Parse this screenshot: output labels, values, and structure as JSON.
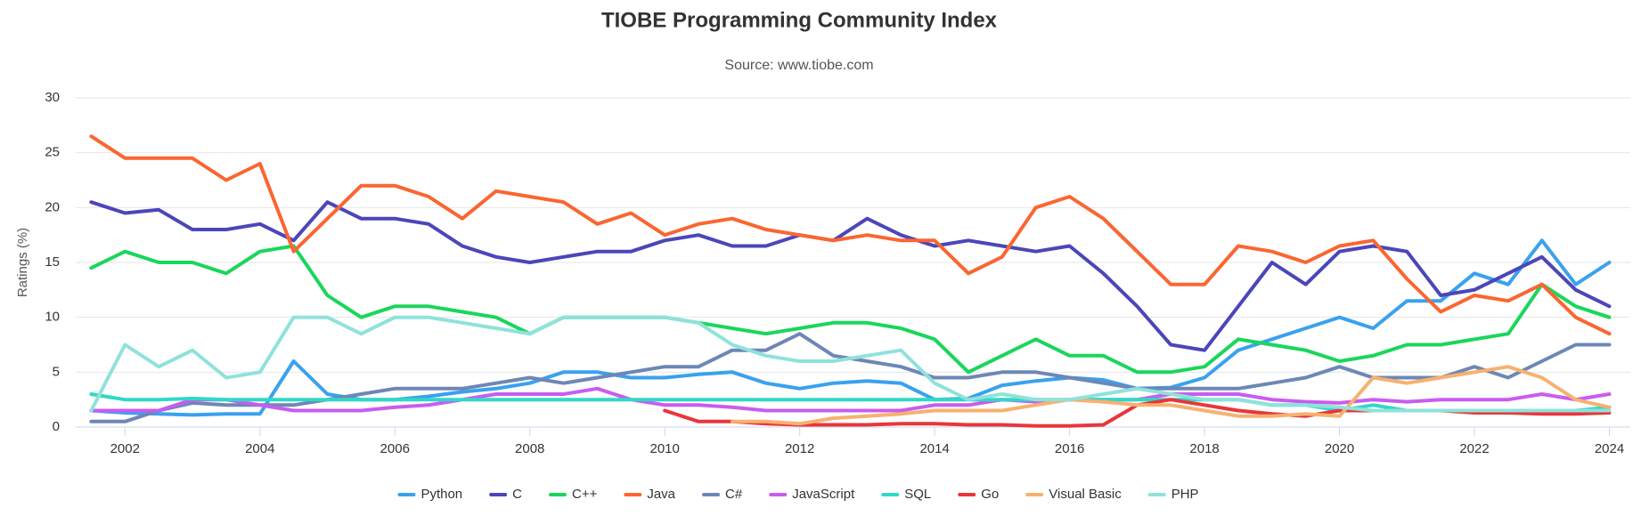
{
  "chart_data": {
    "type": "line",
    "title": "TIOBE Programming Community Index",
    "subtitle": "Source: www.tiobe.com",
    "y_label": "Ratings (%)",
    "x": [
      2001.5,
      2002,
      2002.5,
      2003,
      2003.5,
      2004,
      2004.5,
      2005,
      2005.5,
      2006,
      2006.5,
      2007,
      2007.5,
      2008,
      2008.5,
      2009,
      2009.5,
      2010,
      2010.5,
      2011,
      2011.5,
      2012,
      2012.5,
      2013,
      2013.5,
      2014,
      2014.5,
      2015,
      2015.5,
      2016,
      2016.5,
      2017,
      2017.5,
      2018,
      2018.5,
      2019,
      2019.5,
      2020,
      2020.5,
      2021,
      2021.5,
      2022,
      2022.5,
      2023,
      2023.5,
      2024
    ],
    "xlim": [
      2001.27,
      2024.31
    ],
    "xticks": [
      2002,
      2004,
      2006,
      2008,
      2010,
      2012,
      2014,
      2016,
      2018,
      2020,
      2022,
      2024
    ],
    "ylim": [
      0,
      30
    ],
    "yticks": [
      0,
      5,
      10,
      15,
      20,
      25,
      30
    ],
    "grid": true,
    "legend": "bottom",
    "series": [
      {
        "name": "Python",
        "color": "#3aa1ee",
        "values": [
          1.5,
          1.3,
          1.2,
          1.1,
          1.2,
          1.2,
          6,
          3,
          2.5,
          2.5,
          2.8,
          3.2,
          3.5,
          4,
          5,
          5,
          4.5,
          4.5,
          4.8,
          5,
          4,
          3.5,
          4,
          4.2,
          4,
          2.5,
          2.6,
          3.8,
          4.2,
          4.5,
          4.3,
          3.5,
          3.6,
          4.5,
          7,
          8,
          9,
          10,
          9,
          11.5,
          11.5,
          14,
          13,
          17,
          13,
          15
        ]
      },
      {
        "name": "C",
        "color": "#4b46b9",
        "values": [
          20.5,
          19.5,
          19.8,
          18,
          18,
          18.5,
          17,
          20.5,
          19,
          19,
          18.5,
          16.5,
          15.5,
          15,
          15.5,
          16,
          16,
          17,
          17.5,
          16.5,
          16.5,
          17.5,
          17,
          19,
          17.5,
          16.5,
          17,
          16.5,
          16,
          16.5,
          14,
          11,
          7.5,
          7,
          11,
          15,
          13,
          16,
          16.5,
          16,
          12,
          12.5,
          14,
          15.5,
          12.5,
          11
        ]
      },
      {
        "name": "C++",
        "color": "#1ad65b",
        "values": [
          14.5,
          16,
          15,
          15,
          14,
          16,
          16.5,
          12,
          10,
          11,
          11,
          10.5,
          10,
          8.5,
          10,
          10,
          10,
          10,
          9.5,
          9,
          8.5,
          9,
          9.5,
          9.5,
          9,
          8,
          5,
          6.5,
          8,
          6.5,
          6.5,
          5,
          5,
          5.5,
          8,
          7.5,
          7,
          6,
          6.5,
          7.5,
          7.5,
          8,
          8.5,
          13,
          11,
          10
        ]
      },
      {
        "name": "Java",
        "color": "#fa6631",
        "values": [
          26.5,
          24.5,
          24.5,
          24.5,
          22.5,
          24,
          16,
          19,
          22,
          22,
          21,
          19,
          21.5,
          21,
          20.5,
          18.5,
          19.5,
          17.5,
          18.5,
          19,
          18,
          17.5,
          17,
          17.5,
          17,
          17,
          14,
          15.5,
          20,
          21,
          19,
          16,
          13,
          13,
          16.5,
          16,
          15,
          16.5,
          17,
          13.5,
          10.5,
          12,
          11.5,
          13,
          10,
          8.5
        ]
      },
      {
        "name": "C#",
        "color": "#6d87b6",
        "values": [
          0.5,
          0.5,
          1.5,
          2.2,
          2,
          2,
          2,
          2.5,
          3,
          3.5,
          3.5,
          3.5,
          4,
          4.5,
          4,
          4.5,
          5,
          5.5,
          5.5,
          7,
          7,
          8.5,
          6.5,
          6,
          5.5,
          4.5,
          4.5,
          5,
          5,
          4.5,
          4,
          3.5,
          3.5,
          3.5,
          3.5,
          4,
          4.5,
          5.5,
          4.5,
          4.5,
          4.5,
          5.5,
          4.5,
          6,
          7.5,
          7.5
        ]
      },
      {
        "name": "JavaScript",
        "color": "#c95cf0",
        "values": [
          1.5,
          1.5,
          1.5,
          2.5,
          2.5,
          2,
          1.5,
          1.5,
          1.5,
          1.8,
          2,
          2.5,
          3,
          3,
          3,
          3.5,
          2.5,
          2,
          2,
          1.8,
          1.5,
          1.5,
          1.5,
          1.5,
          1.5,
          2,
          2,
          2.5,
          2.3,
          2.5,
          2.5,
          2.5,
          3,
          3,
          3,
          2.5,
          2.3,
          2.2,
          2.5,
          2.3,
          2.5,
          2.5,
          2.5,
          3,
          2.5,
          3
        ]
      },
      {
        "name": "SQL",
        "color": "#2fd9c6",
        "values": [
          3,
          2.5,
          2.5,
          2.6,
          2.5,
          2.5,
          2.5,
          2.5,
          2.5,
          2.5,
          2.5,
          2.5,
          2.5,
          2.5,
          2.5,
          2.5,
          2.5,
          2.5,
          2.5,
          2.5,
          2.5,
          2.5,
          2.5,
          2.5,
          2.5,
          2.5,
          2.5,
          2.5,
          2.5,
          2.5,
          2.5,
          2.5,
          2.5,
          2.5,
          2.5,
          2,
          2,
          1.5,
          2,
          1.5,
          1.5,
          1.5,
          1.5,
          1.5,
          1.5,
          1.8
        ]
      },
      {
        "name": "Go",
        "color": "#e8363b",
        "values": [
          null,
          null,
          null,
          null,
          null,
          null,
          null,
          null,
          null,
          null,
          null,
          null,
          null,
          null,
          null,
          null,
          null,
          1.5,
          0.5,
          0.5,
          0.3,
          0.2,
          0.2,
          0.2,
          0.3,
          0.3,
          0.2,
          0.2,
          0.1,
          0.1,
          0.2,
          2,
          2.5,
          2,
          1.5,
          1.2,
          1,
          1.5,
          1.5,
          1.5,
          1.5,
          1.3,
          1.3,
          1.2,
          1.2,
          1.3
        ]
      },
      {
        "name": "Visual Basic",
        "color": "#f7b16f",
        "values": [
          null,
          null,
          null,
          null,
          null,
          null,
          null,
          null,
          null,
          null,
          null,
          null,
          null,
          null,
          null,
          null,
          null,
          null,
          null,
          0.5,
          0.5,
          0.3,
          0.8,
          1,
          1.2,
          1.5,
          1.5,
          1.5,
          2,
          2.5,
          2.3,
          2,
          2,
          1.5,
          1,
          1,
          1.2,
          1,
          4.5,
          4,
          4.5,
          5,
          5.5,
          4.5,
          2.5,
          1.8
        ]
      },
      {
        "name": "PHP",
        "color": "#8fe2db",
        "values": [
          1.5,
          7.5,
          5.5,
          7,
          4.5,
          5,
          10,
          10,
          8.5,
          10,
          10,
          9.5,
          9,
          8.5,
          10,
          10,
          10,
          10,
          9.5,
          7.5,
          6.5,
          6,
          6,
          6.5,
          7,
          4,
          2.5,
          3,
          2.5,
          2.5,
          3,
          3.5,
          3,
          2.5,
          2.5,
          2,
          2,
          1.8,
          1.5,
          1.5,
          1.5,
          1.5,
          1.5,
          1.5,
          1.5,
          1.5
        ]
      }
    ]
  }
}
